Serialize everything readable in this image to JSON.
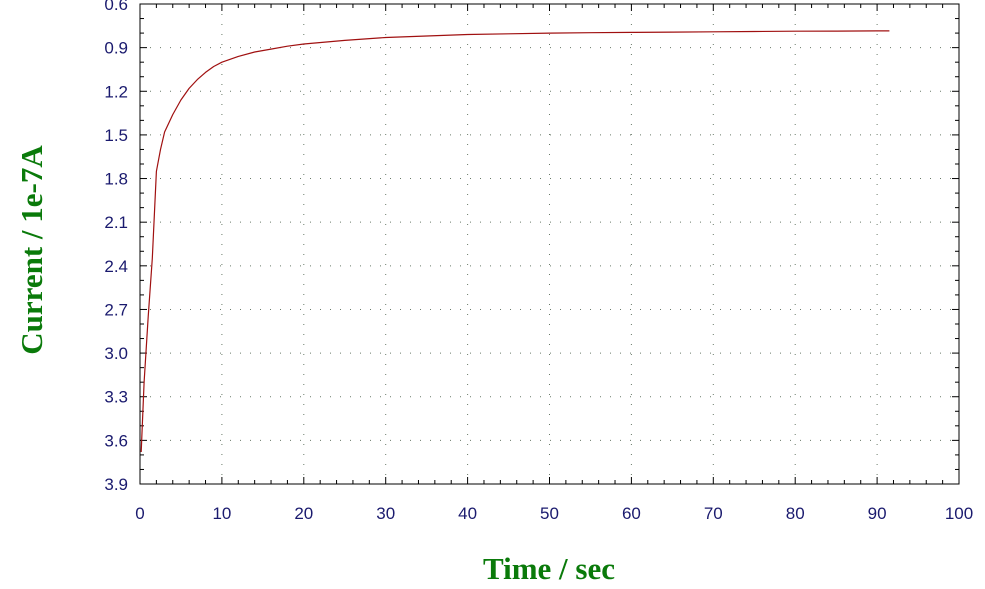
{
  "chart_data": {
    "type": "line",
    "title": "",
    "xlabel": "Time / sec",
    "ylabel": "Current / 1e-7A",
    "xlim": [
      0,
      100
    ],
    "ylim": [
      0.6,
      3.9
    ],
    "y_axis_inverted": true,
    "x_ticks": [
      "0",
      "10",
      "20",
      "30",
      "40",
      "50",
      "60",
      "70",
      "80",
      "90",
      "100"
    ],
    "y_ticks": [
      "0.6",
      "0.9",
      "1.2",
      "1.5",
      "1.8",
      "2.1",
      "2.4",
      "2.7",
      "3.0",
      "3.3",
      "3.6",
      "3.9"
    ],
    "grid": "dotted",
    "legend": "none",
    "series": [
      {
        "color": "#a01010",
        "x": [
          0.15,
          0.5,
          1,
          1.5,
          2,
          2.5,
          3,
          4,
          5,
          6,
          7,
          8,
          9,
          10,
          12,
          14,
          16,
          18,
          20,
          25,
          30,
          35,
          40,
          45,
          50,
          55,
          60,
          65,
          70,
          75,
          80,
          85,
          90,
          91.5
        ],
        "y": [
          3.68,
          3.2,
          2.75,
          2.35,
          1.75,
          1.6,
          1.48,
          1.36,
          1.26,
          1.18,
          1.12,
          1.07,
          1.03,
          1.0,
          0.96,
          0.93,
          0.91,
          0.89,
          0.875,
          0.85,
          0.83,
          0.82,
          0.81,
          0.805,
          0.8,
          0.797,
          0.795,
          0.793,
          0.791,
          0.789,
          0.787,
          0.786,
          0.785,
          0.785
        ]
      }
    ]
  }
}
